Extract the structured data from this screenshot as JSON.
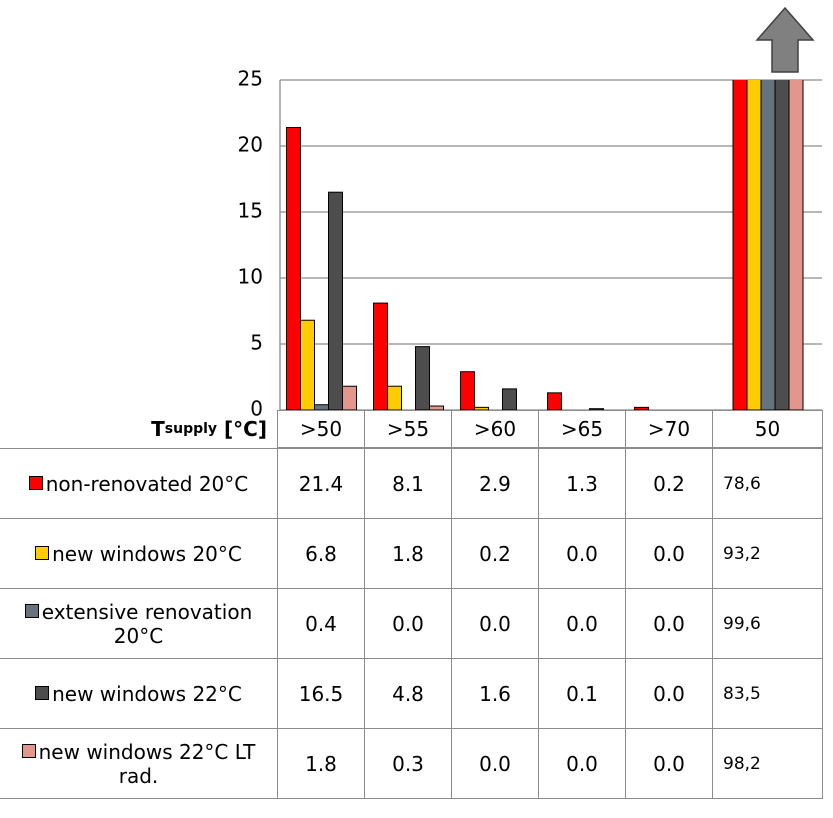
{
  "chart_data": {
    "type": "bar",
    "x_label": {
      "symbol": "T",
      "subscript": "supply",
      "unit": "[°C]"
    },
    "categories": [
      ">50",
      ">55",
      ">60",
      ">65",
      ">70",
      "50"
    ],
    "ylim": [
      0,
      25
    ],
    "yticks": [
      0,
      5,
      10,
      15,
      20,
      25
    ],
    "grid": true,
    "series": [
      {
        "name": "non-renovated 20°C",
        "color": "#ff0000",
        "values": [
          21.4,
          8.1,
          2.9,
          1.3,
          0.2,
          78.6
        ],
        "value_labels": [
          "21.4",
          "8.1",
          "2.9",
          "1.3",
          "0.2",
          "78,6"
        ]
      },
      {
        "name": "new windows 20°C",
        "color": "#ffcc00",
        "values": [
          6.8,
          1.8,
          0.2,
          0,
          0,
          93.2
        ],
        "value_labels": [
          "6.8",
          "1.8",
          "0.2",
          "0.0",
          "0.0",
          "93,2"
        ]
      },
      {
        "name": "extensive renovation 20°C",
        "color": "#66737d",
        "values": [
          0.4,
          0,
          0,
          0,
          0,
          99.6
        ],
        "value_labels": [
          "0.4",
          "0.0",
          "0.0",
          "0.0",
          "0.0",
          "99,6"
        ]
      },
      {
        "name": "new windows 22°C",
        "color": "#4d4d4d",
        "values": [
          16.5,
          4.8,
          1.6,
          0.1,
          0,
          83.5
        ],
        "value_labels": [
          "16.5",
          "4.8",
          "1.6",
          "0.1",
          "0.0",
          "83,5"
        ]
      },
      {
        "name": "new windows 22°C LT rad.",
        "color": "#e3968c",
        "values": [
          1.8,
          0.3,
          0,
          0,
          0,
          98.2
        ],
        "value_labels": [
          "1.8",
          "0.3",
          "0.0",
          "0.0",
          "0.0",
          "98,2"
        ]
      }
    ]
  }
}
